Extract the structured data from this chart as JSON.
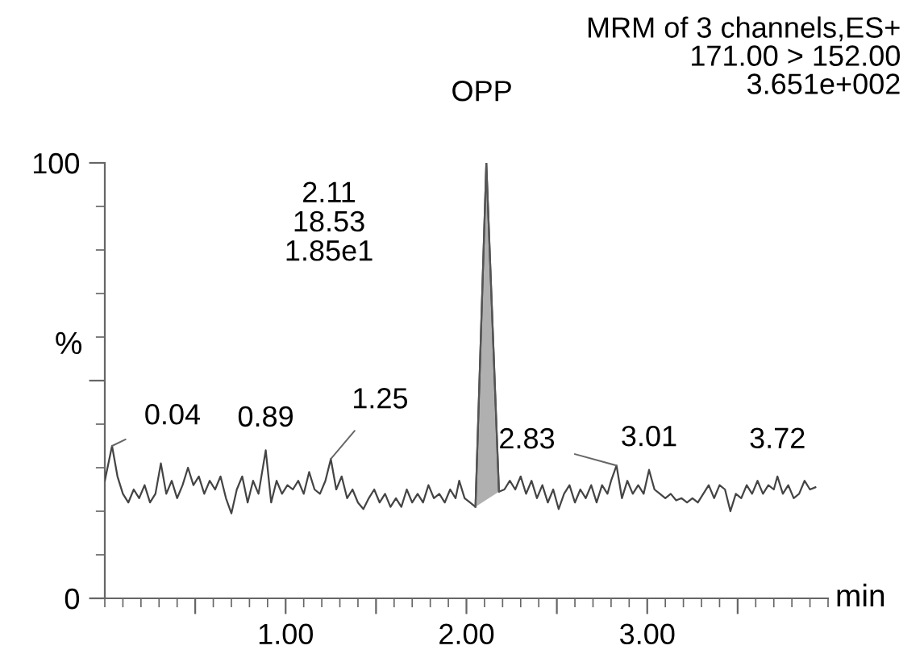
{
  "chart_data": {
    "type": "line",
    "title": "MRM of 3 channels,ES+\n171.00 > 152.00\n3.651e+002",
    "xlabel": "min",
    "ylabel": "%",
    "xlim": [
      0,
      4
    ],
    "ylim": [
      0,
      100
    ],
    "xticks": [
      {
        "value": 0.5,
        "label": null
      },
      {
        "value": 1,
        "label": "1.00"
      },
      {
        "value": 1.5,
        "label": null
      },
      {
        "value": 2,
        "label": "2.00"
      },
      {
        "value": 2.5,
        "label": null
      },
      {
        "value": 3,
        "label": "3.00"
      },
      {
        "value": 3.5,
        "label": null
      }
    ],
    "yticks": [
      0,
      {
        "value": 50,
        "label": null
      },
      100
    ],
    "grid": false,
    "legend": false,
    "marker": "none",
    "line_style": "solid",
    "series": [
      {
        "color": "#444444",
        "x": [
          0.0,
          0.04,
          0.07,
          0.1,
          0.13,
          0.16,
          0.19,
          0.22,
          0.25,
          0.28,
          0.31,
          0.34,
          0.37,
          0.4,
          0.43,
          0.46,
          0.49,
          0.52,
          0.55,
          0.58,
          0.61,
          0.64,
          0.67,
          0.7,
          0.73,
          0.76,
          0.79,
          0.82,
          0.85,
          0.89,
          0.92,
          0.95,
          0.98,
          1.01,
          1.04,
          1.07,
          1.1,
          1.13,
          1.16,
          1.19,
          1.22,
          1.25,
          1.28,
          1.31,
          1.34,
          1.37,
          1.4,
          1.43,
          1.46,
          1.49,
          1.52,
          1.55,
          1.58,
          1.61,
          1.64,
          1.67,
          1.7,
          1.73,
          1.76,
          1.79,
          1.82,
          1.85,
          1.88,
          1.91,
          1.94,
          1.96,
          1.99,
          2.02,
          2.05,
          2.11,
          2.18,
          2.21,
          2.24,
          2.27,
          2.3,
          2.33,
          2.36,
          2.39,
          2.42,
          2.45,
          2.48,
          2.51,
          2.54,
          2.57,
          2.6,
          2.63,
          2.66,
          2.69,
          2.72,
          2.75,
          2.78,
          2.8,
          2.83,
          2.86,
          2.89,
          2.92,
          2.95,
          2.98,
          3.01,
          3.04,
          3.07,
          3.1,
          3.13,
          3.16,
          3.19,
          3.22,
          3.25,
          3.28,
          3.31,
          3.34,
          3.37,
          3.4,
          3.43,
          3.46,
          3.49,
          3.52,
          3.55,
          3.58,
          3.61,
          3.64,
          3.67,
          3.7,
          3.72,
          3.75,
          3.78,
          3.81,
          3.84,
          3.87,
          3.9,
          3.93
        ],
        "values": [
          27,
          35,
          28,
          24,
          22,
          25,
          23,
          26,
          22,
          24,
          31,
          24,
          27,
          23,
          26,
          30,
          26,
          28,
          24,
          27,
          25,
          28,
          23,
          19.5,
          25,
          28,
          22,
          27,
          24,
          34,
          22,
          27,
          24,
          26,
          25,
          27,
          24,
          29,
          25,
          24,
          27,
          32,
          25,
          28,
          23,
          25,
          22,
          20.5,
          23,
          25,
          22,
          24,
          21,
          23,
          21,
          25,
          22,
          24,
          22,
          26,
          23,
          24,
          22,
          25,
          23,
          27,
          23,
          22,
          21,
          100,
          24.5,
          25,
          27,
          25,
          28,
          24,
          27,
          23,
          26,
          22,
          25,
          20.5,
          24,
          26,
          22,
          25,
          23,
          26,
          22,
          26,
          24,
          27,
          30.5,
          23,
          27,
          24,
          26,
          24,
          29.5,
          25,
          24,
          23,
          24,
          22.5,
          23,
          22,
          23,
          22,
          24,
          26,
          23,
          26,
          25,
          20,
          24,
          23,
          26,
          24,
          27,
          24,
          26,
          25,
          28,
          24,
          26,
          23,
          24,
          27,
          25,
          25.5
        ]
      },
      {
        "type": "area",
        "color": "#b0b0b0",
        "x": [
          2.05,
          2.11,
          2.18
        ],
        "values": [
          21,
          100,
          24.5
        ]
      }
    ],
    "annotations": [
      {
        "text": "0.04",
        "x": 0.04,
        "y": 35
      },
      {
        "text": "0.89",
        "x": 0.89,
        "y": 34
      },
      {
        "text": "1.25",
        "x": 1.25,
        "y": 32
      },
      {
        "text": "OPP",
        "x": 2.11,
        "y": 100
      },
      "2.11\n18.53\n1.85e1",
      {
        "text": "2.83",
        "x": 2.83,
        "y": 30.5
      },
      {
        "text": "3.01",
        "x": 3.01,
        "y": 29.5
      },
      {
        "text": "3.72",
        "x": 3.72,
        "y": 28
      }
    ]
  }
}
